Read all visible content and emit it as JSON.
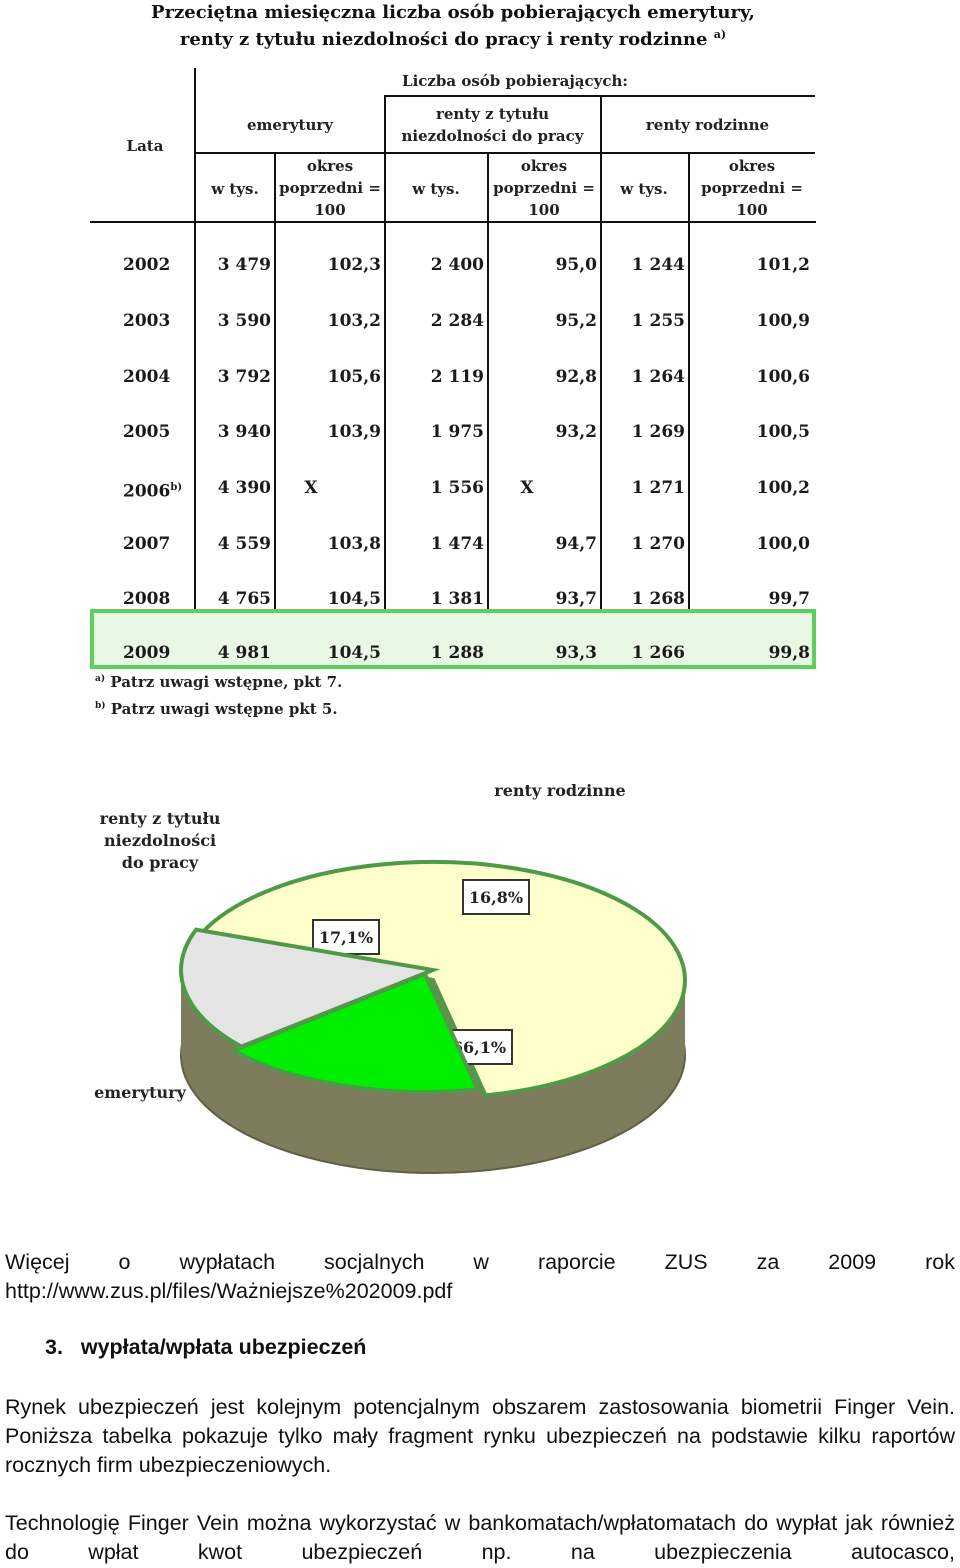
{
  "table": {
    "title_line1": "Przeciętna miesięczna liczba osób pobierających emerytury,",
    "title_line2": "renty z tytułu niezdolności do pracy i renty rodzinne",
    "title_note": "a)",
    "header_years": "Lata",
    "header_group": "Liczba osób pobierających:",
    "header_col1": "emerytury",
    "header_col2_line1": "renty z tytułu",
    "header_col2_line2": "niezdolności do pracy",
    "header_col3": "renty rodzinne",
    "sub_thousands": "w tys.",
    "sub_index_line1": "okres",
    "sub_index_line2": "poprzedni =",
    "sub_index_line3": "100",
    "rows": [
      {
        "year": "2002",
        "note": "",
        "c1": "3 479",
        "c2": "102,3",
        "c3": "2 400",
        "c4": "95,0",
        "c5": "1 244",
        "c6": "101,2"
      },
      {
        "year": "2003",
        "note": "",
        "c1": "3 590",
        "c2": "103,2",
        "c3": "2 284",
        "c4": "95,2",
        "c5": "1 255",
        "c6": "100,9"
      },
      {
        "year": "2004",
        "note": "",
        "c1": "3 792",
        "c2": "105,6",
        "c3": "2 119",
        "c4": "92,8",
        "c5": "1 264",
        "c6": "100,6"
      },
      {
        "year": "2005",
        "note": "",
        "c1": "3 940",
        "c2": "103,9",
        "c3": "1 975",
        "c4": "93,2",
        "c5": "1 269",
        "c6": "100,5"
      },
      {
        "year": "2006",
        "note": "b)",
        "c1": "4 390",
        "c2": "X",
        "c3": "1 556",
        "c4": "X",
        "c5": "1 271",
        "c6": "100,2"
      },
      {
        "year": "2007",
        "note": "",
        "c1": "4 559",
        "c2": "103,8",
        "c3": "1 474",
        "c4": "94,7",
        "c5": "1 270",
        "c6": "100,0"
      },
      {
        "year": "2008",
        "note": "",
        "c1": "4 765",
        "c2": "104,5",
        "c3": "1 381",
        "c4": "93,7",
        "c5": "1 268",
        "c6": "99,7"
      },
      {
        "year": "2009",
        "note": "",
        "c1": "4 981",
        "c2": "104,5",
        "c3": "1 288",
        "c4": "93,3",
        "c5": "1 266",
        "c6": "99,8"
      }
    ],
    "highlight_color": "#5cd05a",
    "footnote_a_mark": "a)",
    "footnote_a": "Patrz uwagi wstępne, pkt 7.",
    "footnote_b_mark": "b)",
    "footnote_b": "Patrz uwagi wstępne pkt 5."
  },
  "pie": {
    "label_emerytury": "emerytury",
    "label_renty_niezdolnosc_1": "renty z tytułu",
    "label_renty_niezdolnosc_2": "niezdolności",
    "label_renty_niezdolnosc_3": "do pracy",
    "label_renty_rodzinne": "renty rodzinne",
    "slices": [
      {
        "name": "emerytury",
        "value": 66.1,
        "label": "66,1%",
        "color": "#ffffcc"
      },
      {
        "name": "renty z tytułu niezdolności do pracy",
        "value": 17.1,
        "label": "17,1%",
        "color": "#00ee00"
      },
      {
        "name": "renty rodzinne",
        "value": 16.8,
        "label": "16,8%",
        "color": "#e4e4e4"
      }
    ],
    "side_color": "#7d7d5e",
    "edge_color": "#4f9a46"
  },
  "text": {
    "more_line1_words": [
      "Więcej",
      "o",
      "wypłatach",
      "socjalnych",
      "w",
      "raporcie",
      "ZUS",
      "za",
      "2009",
      "rok"
    ],
    "more_line2": "http://www.zus.pl/files/Ważniejsze%202009.pdf",
    "heading_number": "3.",
    "heading_text": "wypłata/wpłata ubezpieczeń",
    "para1": "Rynek ubezpieczeń jest kolejnym potencjalnym obszarem zastosowania biometrii Finger Vein. Poniższa tabelka pokazuje tylko mały fragment rynku ubezpieczeń na podstawie kilku raportów rocznych firm ubezpieczeniowych.",
    "para2": "Technologię Finger Vein można wykorzystać w bankomatach/wpłatomatach do wypłat jak również do wpłat kwot ubezpieczeń np. na ubezpieczenia autocasco,"
  }
}
